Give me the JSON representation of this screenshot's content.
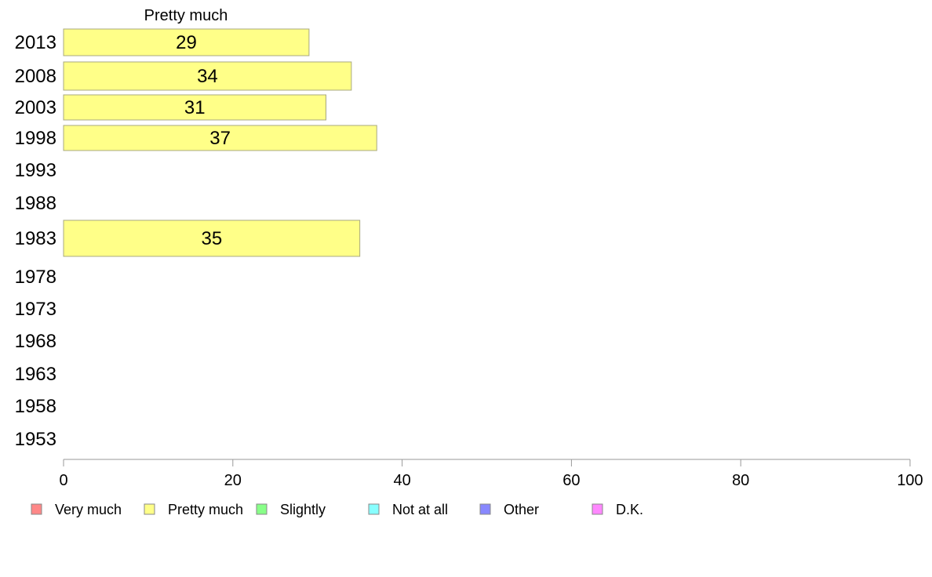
{
  "chart_data": {
    "type": "bar",
    "orientation": "horizontal",
    "series_title": "Pretty much",
    "categories": [
      "2013",
      "2008",
      "2003",
      "1998",
      "1993",
      "1988",
      "1983",
      "1978",
      "1973",
      "1968",
      "1963",
      "1958",
      "1953"
    ],
    "series": [
      {
        "name": "Pretty much",
        "color": "#ffff88",
        "values": [
          29,
          34,
          31,
          37,
          null,
          null,
          35,
          null,
          null,
          null,
          null,
          null,
          null
        ]
      }
    ],
    "xlim": [
      0,
      100
    ],
    "x_ticks": [
      "0",
      "20",
      "40",
      "60",
      "80",
      "100"
    ],
    "legend": {
      "placement": "bottom",
      "entries": [
        {
          "label": "Very much",
          "color": "#ff8888"
        },
        {
          "label": "Pretty much",
          "color": "#ffff88"
        },
        {
          "label": "Slightly",
          "color": "#88ff88"
        },
        {
          "label": "Not at all",
          "color": "#88ffff"
        },
        {
          "label": "Other",
          "color": "#8888ff"
        },
        {
          "label": "D.K.",
          "color": "#ff88ff"
        }
      ]
    }
  }
}
